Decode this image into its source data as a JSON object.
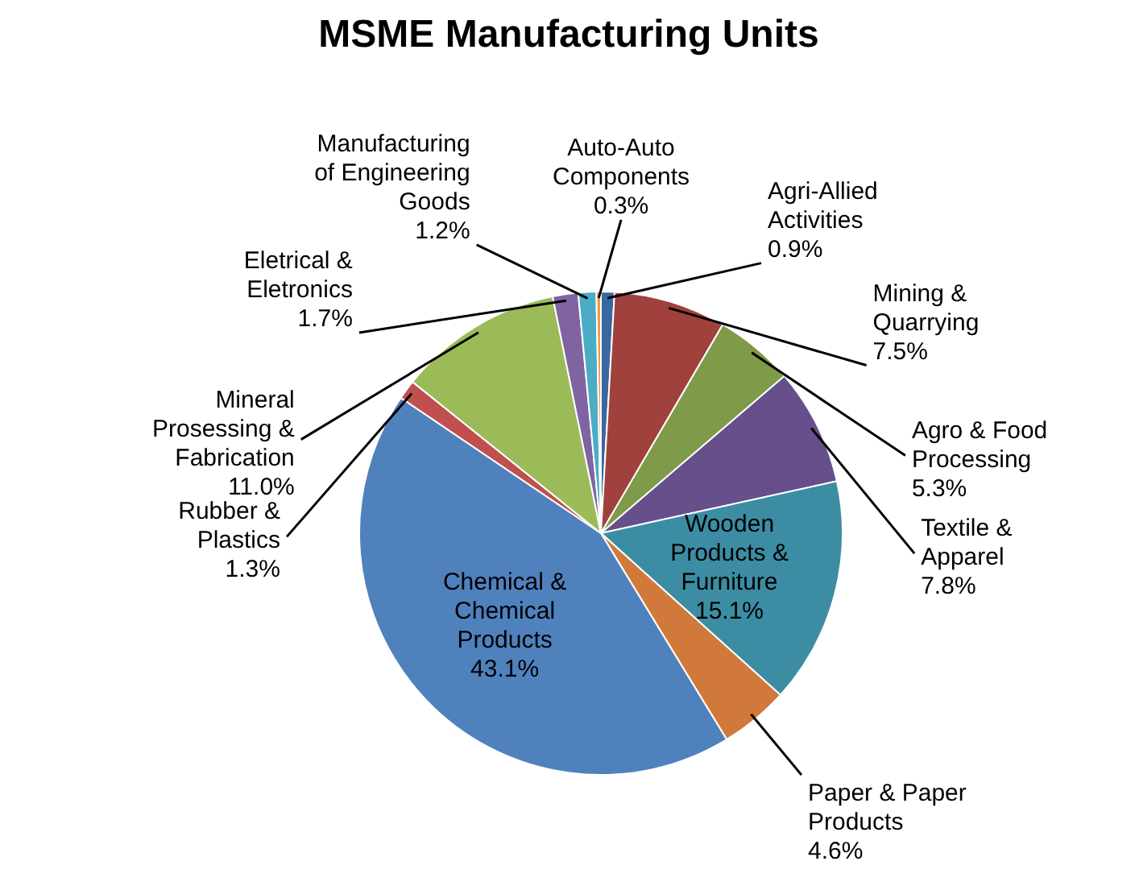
{
  "chart_data": {
    "type": "pie",
    "title": "MSME Manufacturing Units",
    "categories": [
      "Agri-Allied Activities",
      "Mining & Quarrying",
      "Agro & Food Processing",
      "Textile & Apparel",
      "Wooden Products & Furniture",
      "Paper & Paper Products",
      "Chemical & Chemical Products",
      "Rubber & Plastics",
      "Mineral Prosessing & Fabrication",
      "Eletrical & Eletronics",
      "Manufacturing of Engineering Goods",
      "Auto-Auto Components"
    ],
    "values": [
      0.9,
      7.5,
      5.3,
      7.8,
      15.1,
      4.6,
      43.1,
      1.3,
      11.0,
      1.7,
      1.2,
      0.3
    ],
    "value_labels": [
      "0.9%",
      "7.5%",
      "5.3%",
      "7.8%",
      "15.1%",
      "4.6%",
      "43.1%",
      "1.3%",
      "11.0%",
      "1.7%",
      "1.2%",
      "0.3%"
    ],
    "colors": [
      "#3a67a0",
      "#a0413e",
      "#7f9a48",
      "#664f8a",
      "#3c8da3",
      "#d1793a",
      "#4f81bd",
      "#c0504d",
      "#9bbb59",
      "#8064a2",
      "#4bacc6",
      "#f79646"
    ],
    "legend": false
  }
}
